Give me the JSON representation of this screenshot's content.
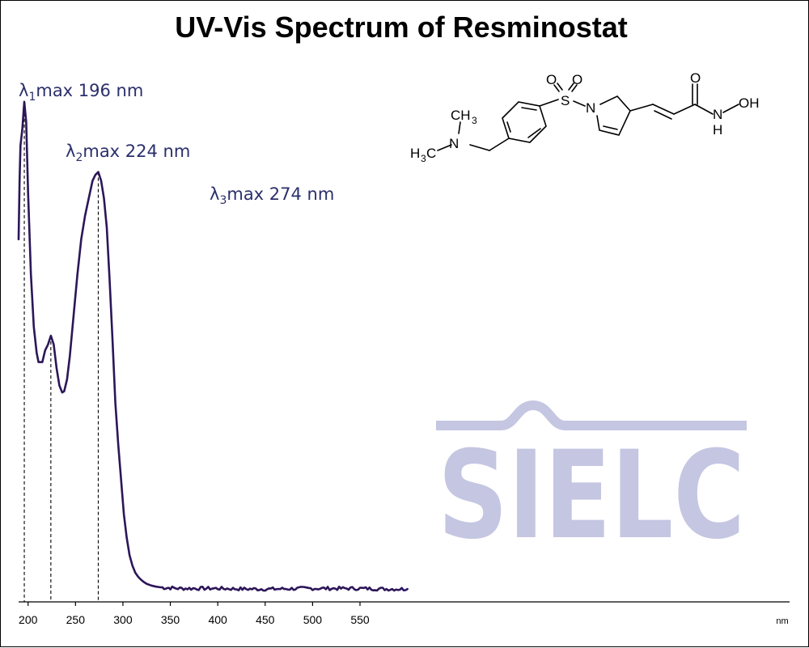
{
  "chart_data": {
    "type": "line",
    "title": "UV-Vis Spectrum of Resminostat",
    "x_unit": "nm",
    "xlim": [
      190,
      1003
    ],
    "ylim": [
      0,
      1
    ],
    "x_ticks": [
      200,
      250,
      300,
      350,
      400,
      450,
      500,
      550
    ],
    "grid": false,
    "legend": "none",
    "peaks": [
      {
        "label_prefix": "λ",
        "subscript": "1",
        "label_suffix": "max  196 nm",
        "wavelength": 196
      },
      {
        "label_prefix": "λ",
        "subscript": "2",
        "label_suffix": "max  224 nm",
        "wavelength": 224
      },
      {
        "label_prefix": "λ",
        "subscript": "3",
        "label_suffix": "max  274 nm",
        "wavelength": 274
      }
    ],
    "series": [
      {
        "x": [
          190,
          191,
          192,
          194,
          196,
          198,
          200,
          203,
          206,
          209,
          211,
          213,
          215,
          218,
          221,
          224,
          227,
          230,
          233,
          236,
          238,
          241,
          244,
          248,
          252,
          256,
          260,
          264,
          268,
          271,
          274,
          277,
          280,
          283,
          286,
          289,
          292,
          295,
          298,
          301,
          304,
          307,
          310,
          313,
          316,
          319,
          322,
          325,
          330,
          335,
          340,
          345,
          350,
          360,
          380,
          400,
          430,
          460,
          490,
          510,
          530,
          550,
          580,
          600
        ],
        "y": [
          0.62,
          0.72,
          0.78,
          0.81,
          0.855,
          0.82,
          0.7,
          0.56,
          0.47,
          0.426,
          0.41,
          0.41,
          0.41,
          0.43,
          0.44,
          0.455,
          0.44,
          0.4,
          0.37,
          0.358,
          0.36,
          0.38,
          0.42,
          0.49,
          0.56,
          0.62,
          0.66,
          0.69,
          0.72,
          0.73,
          0.735,
          0.72,
          0.69,
          0.64,
          0.55,
          0.45,
          0.34,
          0.27,
          0.21,
          0.15,
          0.11,
          0.08,
          0.062,
          0.05,
          0.043,
          0.038,
          0.034,
          0.031,
          0.028,
          0.026,
          0.025,
          0.024,
          0.024,
          0.023,
          0.023,
          0.023,
          0.022,
          0.022,
          0.023,
          0.023,
          0.023,
          0.023,
          0.022,
          0.022
        ]
      }
    ]
  },
  "molecule": {
    "atoms": {
      "n_amine": "N",
      "ch3_top": "CH",
      "ch3_top_sub": "3",
      "h3c_left": "H",
      "h3c_left_sub": "3",
      "h3c_left_c": "C",
      "sulfur": "S",
      "oxygen_1": "O",
      "oxygen_2": "O",
      "n_pyrrole": "N",
      "oxygen_carbonyl": "O",
      "n_amide": "N",
      "h_amide": "H",
      "oh_group": "OH"
    }
  },
  "watermark": {
    "text": "SIELC",
    "color": "#c5c6e2"
  },
  "colors": {
    "trace": "#2c1659",
    "label": "#2b2f6b",
    "watermark": "#c5c6e2"
  }
}
